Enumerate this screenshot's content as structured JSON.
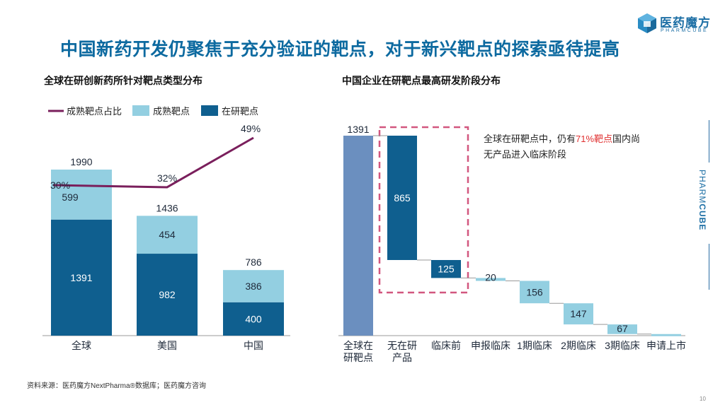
{
  "page": {
    "title": "中国新药开发仍聚焦于充分验证的靶点，对于新兴靶点的探索亟待提高",
    "source": "资料来源：医药魔方NextPharma®数据库；医药魔方咨询",
    "page_number": "10",
    "logo_name": "医药魔方",
    "logo_sub": "PHARMCUBE",
    "side_brand_light": "PHARM",
    "side_brand_bold": "CUBE",
    "colors": {
      "title": "#0d6aa0",
      "dark_bar": "#0f5f8f",
      "light_bar": "#93cfe1",
      "line": "#7a1f5c",
      "total_bar": "#6b8fbf",
      "dashed_box": "#d2577f",
      "highlight_text": "#e03030"
    }
  },
  "chart_data": [
    {
      "type": "bar",
      "stacked": true,
      "title": "全球在研创新药所针对靶点类型分布",
      "categories": [
        "全球",
        "美国",
        "中国"
      ],
      "series": [
        {
          "name": "在研靶点",
          "values": [
            1391,
            982,
            400
          ]
        },
        {
          "name": "成熟靶点",
          "values": [
            599,
            454,
            386
          ]
        }
      ],
      "totals": [
        1990,
        1436,
        786
      ],
      "line_series": {
        "name": "成熟靶点占比",
        "values": [
          30,
          32,
          49
        ],
        "labels": [
          "30%",
          "32%",
          "49%"
        ]
      },
      "legend": [
        "成熟靶点占比",
        "成熟靶点",
        "在研靶点"
      ],
      "legend_position": "top-left",
      "ylim": [
        0,
        2200
      ]
    },
    {
      "type": "waterfall",
      "title": "中国企业在研靶点最高研发阶段分布",
      "categories": [
        "全球在研靶点",
        "无在研产品",
        "临床前",
        "申报临床",
        "1期临床",
        "2期临床",
        "3期临床",
        "申请上市"
      ],
      "category_labels": [
        [
          "全球在",
          "研靶点"
        ],
        [
          "无在研",
          "产品"
        ],
        [
          "临床前"
        ],
        [
          "申报临床"
        ],
        [
          "1期临床"
        ],
        [
          "2期临床"
        ],
        [
          "3期临床"
        ],
        [
          "申请上市"
        ]
      ],
      "values": [
        1391,
        865,
        125,
        20,
        156,
        147,
        67,
        11
      ],
      "labels": [
        "1391",
        "865",
        "125",
        "20",
        "156",
        "147",
        "67",
        ""
      ],
      "ylim": [
        0,
        1391
      ],
      "annotation": {
        "prefix": "全球在研靶点中，仍有",
        "highlight": "71%靶点",
        "suffix": "国内尚",
        "line2": "无产品进入临床阶段"
      }
    }
  ]
}
